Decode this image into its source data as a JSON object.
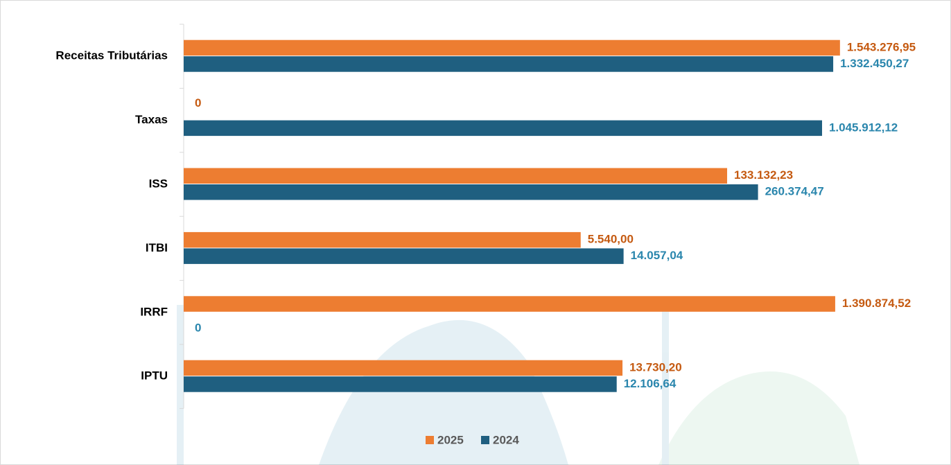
{
  "chart_data": {
    "type": "bar",
    "orientation": "horizontal",
    "log_scale": true,
    "categories": [
      "Receitas Tributárias",
      "Taxas",
      "ISS",
      "ITBI",
      "IRRF",
      "IPTU"
    ],
    "series": [
      {
        "name": "2025",
        "color": "#ed7d31",
        "label_color": "#c55a11",
        "values": [
          1543276.95,
          0,
          133132.23,
          5540.0,
          1390874.52,
          13730.2
        ],
        "value_labels": [
          "1.543.276,95",
          "0",
          "133.132,23",
          "5.540,00",
          "1.390.874,52",
          "13.730,20"
        ]
      },
      {
        "name": "2024",
        "color": "#1f5f80",
        "label_color": "#2a86ad",
        "values": [
          1332450.27,
          1045912.12,
          260374.47,
          14057.04,
          0,
          12106.64
        ],
        "value_labels": [
          "1.332.450,27",
          "1.045.912,12",
          "260.374,47",
          "14.057,04",
          "0",
          "12.106,64"
        ]
      }
    ],
    "xlim": [
      1,
      10000000
    ],
    "legend": "bottom"
  }
}
